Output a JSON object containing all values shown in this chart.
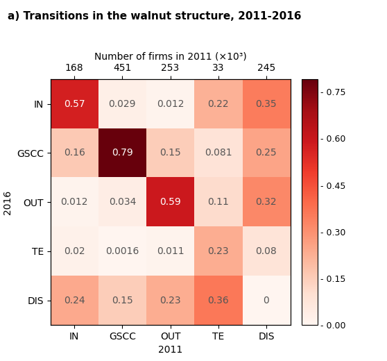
{
  "title": "a) Transitions in the walnut structure, 2011-2016",
  "xlabel": "2011",
  "ylabel": "2016",
  "xlabel_top": "Number of firms in 2011 (×10³)",
  "col_labels": [
    "IN",
    "GSCC",
    "OUT",
    "TE",
    "DIS"
  ],
  "row_labels": [
    "IN",
    "GSCC",
    "OUT",
    "TE",
    "DIS"
  ],
  "col_counts": [
    "168",
    "451",
    "253",
    "33",
    "245"
  ],
  "matrix": [
    [
      0.57,
      0.029,
      0.012,
      0.22,
      0.35
    ],
    [
      0.16,
      0.79,
      0.15,
      0.081,
      0.25
    ],
    [
      0.012,
      0.034,
      0.59,
      0.11,
      0.32
    ],
    [
      0.02,
      0.0016,
      0.011,
      0.23,
      0.08
    ],
    [
      0.24,
      0.15,
      0.23,
      0.36,
      0.0
    ]
  ],
  "cell_text": [
    [
      "0.57",
      "0.029",
      "0.012",
      "0.22",
      "0.35"
    ],
    [
      "0.16",
      "0.79",
      "0.15",
      "0.081",
      "0.25"
    ],
    [
      "0.012",
      "0.034",
      "0.59",
      "0.11",
      "0.32"
    ],
    [
      "0.02",
      "0.0016",
      "0.011",
      "0.23",
      "0.08"
    ],
    [
      "0.24",
      "0.15",
      "0.23",
      "0.36",
      "0"
    ]
  ],
  "vmin": 0.0,
  "vmax": 0.79,
  "cmap": "Reds",
  "colorbar_ticks": [
    0.0,
    0.15,
    0.3,
    0.45,
    0.6,
    0.75
  ],
  "colorbar_labels": [
    "- 0.00",
    "- 0.15",
    "- 0.30",
    "- 0.45",
    "- 0.60",
    "- 0.75"
  ],
  "white_text_threshold": 0.45,
  "title_fontsize": 11,
  "label_fontsize": 10,
  "cell_fontsize": 10,
  "tick_fontsize": 10,
  "colorbar_fontsize": 9
}
